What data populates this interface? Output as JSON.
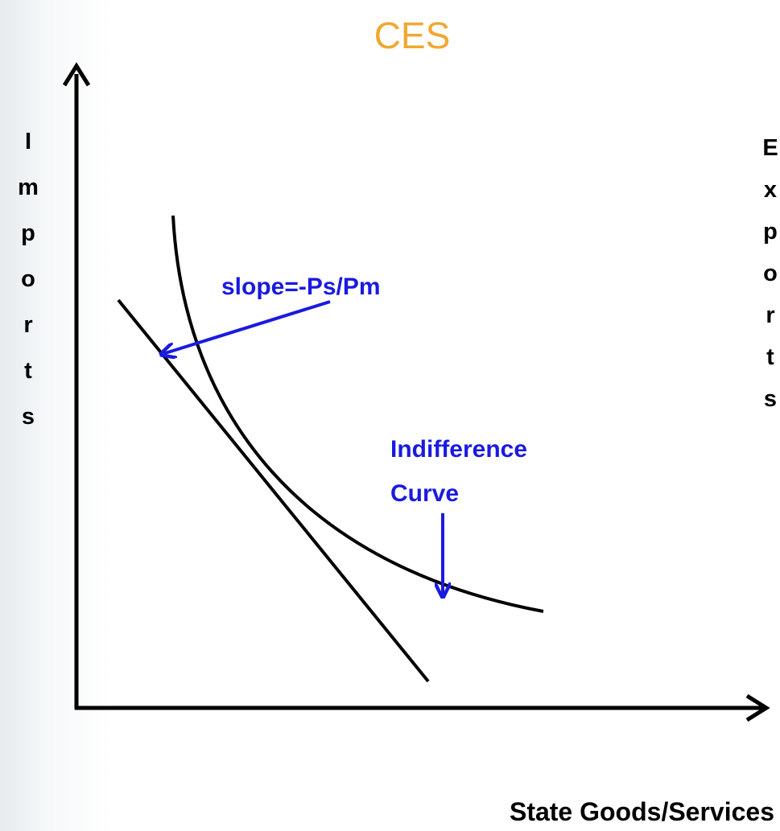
{
  "title": "CES",
  "y_axis_label": "Imports",
  "right_label": "Exports",
  "x_axis_label": "State Goods/Services",
  "annotations": {
    "slope": "slope=-Ps/Pm",
    "curve": [
      "Indifference",
      "Curve"
    ]
  }
}
